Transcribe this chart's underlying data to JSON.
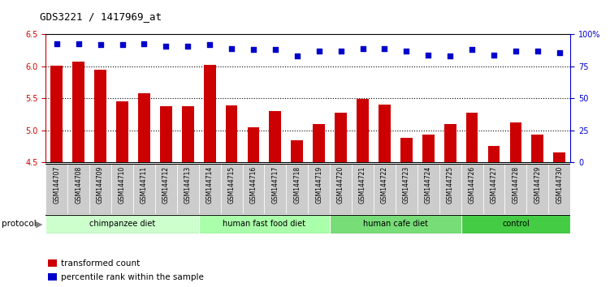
{
  "title": "GDS3221 / 1417969_at",
  "samples": [
    "GSM144707",
    "GSM144708",
    "GSM144709",
    "GSM144710",
    "GSM144711",
    "GSM144712",
    "GSM144713",
    "GSM144714",
    "GSM144715",
    "GSM144716",
    "GSM144717",
    "GSM144718",
    "GSM144719",
    "GSM144720",
    "GSM144721",
    "GSM144722",
    "GSM144723",
    "GSM144724",
    "GSM144725",
    "GSM144726",
    "GSM144727",
    "GSM144728",
    "GSM144729",
    "GSM144730"
  ],
  "bar_values": [
    6.01,
    6.07,
    5.95,
    5.45,
    5.58,
    5.38,
    5.38,
    6.02,
    5.39,
    5.05,
    5.3,
    4.84,
    5.1,
    5.27,
    5.49,
    5.4,
    4.88,
    4.93,
    5.1,
    5.27,
    4.75,
    5.12,
    4.93,
    4.65
  ],
  "percentile_values": [
    93,
    93,
    92,
    92,
    93,
    91,
    91,
    92,
    89,
    88,
    88,
    83,
    87,
    87,
    89,
    89,
    87,
    84,
    83,
    88,
    84,
    87,
    87,
    86
  ],
  "groups": [
    {
      "label": "chimpanzee diet",
      "start": 0,
      "end": 7,
      "color": "#ccffcc"
    },
    {
      "label": "human fast food diet",
      "start": 7,
      "end": 13,
      "color": "#aaffaa"
    },
    {
      "label": "human cafe diet",
      "start": 13,
      "end": 19,
      "color": "#77dd77"
    },
    {
      "label": "control",
      "start": 19,
      "end": 24,
      "color": "#44cc44"
    }
  ],
  "bar_color": "#cc0000",
  "dot_color": "#0000cc",
  "ylim_left": [
    4.5,
    6.5
  ],
  "ylim_right": [
    0,
    100
  ],
  "yticks_left": [
    4.5,
    5.0,
    5.5,
    6.0,
    6.5
  ],
  "yticks_right": [
    0,
    25,
    50,
    75,
    100
  ],
  "grid_values": [
    5.0,
    5.5,
    6.0
  ],
  "legend_items": [
    {
      "label": "transformed count",
      "color": "#cc0000"
    },
    {
      "label": "percentile rank within the sample",
      "color": "#0000cc"
    }
  ],
  "protocol_label": "protocol",
  "background_color": "#ffffff",
  "plot_bg_color": "#ffffff",
  "tick_label_bg": "#cccccc"
}
